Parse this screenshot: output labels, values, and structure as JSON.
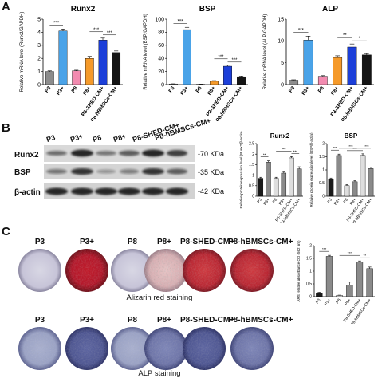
{
  "panels": {
    "a": "A",
    "b": "B",
    "c": "C"
  },
  "colors": {
    "P3": "#8c8c8c",
    "P3+": "#4aa3e8",
    "P8": "#f28bb0",
    "P8+": "#f59a2a",
    "P8-SHED-CM+": "#1c3fd9",
    "P8-hBMSCs-CM+": "#151515",
    "bar_gray1": "#1a1a1a",
    "bar_gray2": "#8a8a8a",
    "bar_gray3": "#dedede"
  },
  "chart_data": [
    {
      "type": "bar",
      "panel": "A",
      "title": "Runx2",
      "ylabel": "Relative mRNA level (Runx2/GAPDH)",
      "categories": [
        "P3",
        "P3+",
        "P8",
        "P8+",
        "P8-SHED-CM+",
        "P8-hBMSCs-CM+"
      ],
      "values": [
        1.0,
        4.1,
        1.05,
        2.0,
        3.4,
        2.45
      ],
      "errors": [
        0.05,
        0.15,
        0.05,
        0.15,
        0.15,
        0.12
      ],
      "ylim": [
        0,
        5
      ],
      "yticks": [
        0,
        1,
        2,
        3,
        4,
        5
      ],
      "annotations": [
        "***",
        "***",
        "***"
      ]
    },
    {
      "type": "bar",
      "panel": "A",
      "title": "BSP",
      "ylabel": "Relative mRNA level (BSP/GAPDH)",
      "categories": [
        "P3",
        "P3+",
        "P8",
        "P8+",
        "P8-SHED-CM+",
        "P8-hBMSCs-CM+"
      ],
      "values": [
        1.0,
        84,
        0.5,
        5.0,
        28,
        12
      ],
      "errors": [
        0.2,
        3.5,
        0.2,
        1.0,
        1.5,
        1.0
      ],
      "ylim": [
        0,
        100
      ],
      "yticks": [
        0,
        20,
        40,
        60,
        80,
        100
      ],
      "annotations": [
        "***",
        "***",
        "***"
      ]
    },
    {
      "type": "bar",
      "panel": "A",
      "title": "ALP",
      "ylabel": "Relative mRNA level (ALP/GAPDH)",
      "categories": [
        "P3",
        "P3+",
        "P8",
        "P8+",
        "P8-SHED-CM+",
        "P8-hBMSCs-CM+"
      ],
      "values": [
        1.0,
        10.2,
        1.9,
        6.2,
        8.6,
        6.8
      ],
      "errors": [
        0.1,
        0.9,
        0.15,
        0.4,
        0.7,
        0.3
      ],
      "ylim": [
        0,
        15
      ],
      "yticks": [
        0,
        5,
        10,
        15
      ],
      "annotations": [
        "***",
        "**",
        "*"
      ]
    },
    {
      "type": "bar",
      "panel": "B",
      "title": "Runx2",
      "ylabel": "Relative protein expression level (Runx2/β-actin)",
      "categories": [
        "P3",
        "P3+",
        "P8",
        "P8+",
        "P8-SHED-CM+",
        "P8-hBMSCs-CM+"
      ],
      "values": [
        0.85,
        1.62,
        0.85,
        1.1,
        1.82,
        1.3
      ],
      "errors": [
        0.05,
        0.06,
        0.05,
        0.05,
        0.06,
        0.1
      ],
      "ylim": [
        0,
        2.5
      ],
      "yticks": [
        0,
        0.5,
        1,
        1.5,
        2,
        2.5
      ],
      "annotations": [
        "**",
        "***",
        "***"
      ]
    },
    {
      "type": "bar",
      "panel": "B",
      "title": "BSP",
      "ylabel": "Relative protein expression level (BSP/β-actin)",
      "categories": [
        "P3",
        "P3+",
        "P8",
        "P8+",
        "P8-SHED-CM+",
        "P8-hBMSCs-CM+"
      ],
      "values": [
        0.65,
        1.55,
        0.4,
        0.55,
        1.55,
        1.05
      ],
      "errors": [
        0.04,
        0.05,
        0.04,
        0.04,
        0.06,
        0.05
      ],
      "ylim": [
        0,
        2.0
      ],
      "yticks": [
        0,
        0.5,
        1,
        1.5,
        2
      ],
      "annotations": [
        "***",
        "***",
        "***",
        "***"
      ]
    },
    {
      "type": "bar",
      "panel": "C",
      "title": "",
      "ylabel": "ARS relative absorbance OD (562 nm)",
      "categories": [
        "P3",
        "P3+",
        "P8",
        "P8+",
        "P8-SHED-CM+",
        "P8-hBMSCs-CM+"
      ],
      "values": [
        0.15,
        1.58,
        0.05,
        0.45,
        1.35,
        1.1
      ],
      "errors": [
        0.02,
        0.04,
        0.01,
        0.12,
        0.05,
        0.06
      ],
      "ylim": [
        0,
        2.0
      ],
      "yticks": [
        0,
        0.5,
        1,
        1.5,
        2
      ],
      "annotations": [
        "***",
        "***",
        "**"
      ]
    }
  ],
  "western": {
    "lanes": [
      "P3",
      "P3+",
      "P8",
      "P8+",
      "P8-SHED-CM+",
      "P8-hBMSCs-CM+"
    ],
    "rows": [
      {
        "label": "Runx2",
        "kda": "-70 KDa"
      },
      {
        "label": "BSP",
        "kda": "-35 KDa"
      },
      {
        "label": "β-actin",
        "kda": "-42 KDa"
      }
    ]
  },
  "staining": {
    "dish_labels": [
      "P3",
      "P3+",
      "P8",
      "P8+",
      "P8-SHED-CM+",
      "P8-hBMSCs-CM+"
    ],
    "alizarin_title": "Alizarin red staining",
    "alp_title": "ALP staining"
  }
}
